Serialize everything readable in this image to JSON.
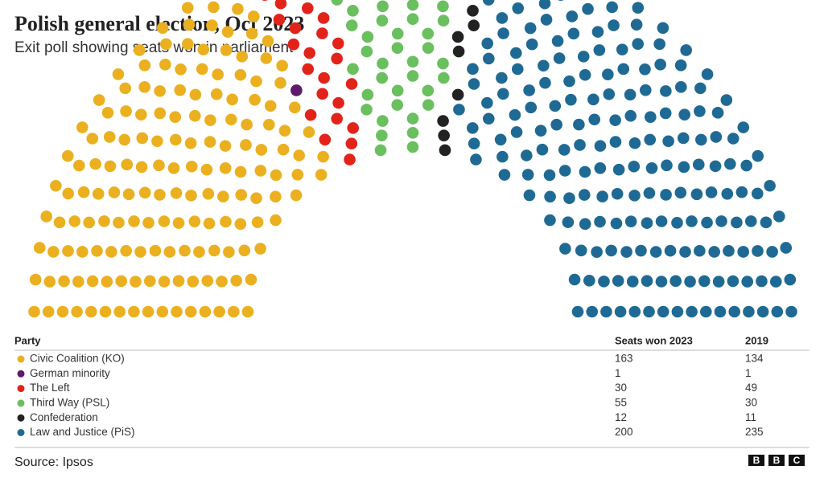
{
  "chart_data": {
    "type": "parliament",
    "title": "Polish general election, Oct 2023",
    "subtitle": "Exit poll showing seats won in parliament",
    "columns": [
      "Party",
      "Seats won 2023",
      "2019"
    ],
    "categories": [
      "Civic Coalition (KO)",
      "German minority",
      "The Left",
      "Third Way (PSL)",
      "Confederation",
      "Law and Justice (PiS)"
    ],
    "colors": [
      "#ebb020",
      "#5c1a6b",
      "#e2231a",
      "#6abf5e",
      "#222222",
      "#1f6a94"
    ],
    "values": [
      163,
      1,
      30,
      55,
      12,
      200
    ],
    "values_2019": [
      134,
      1,
      49,
      30,
      11,
      235
    ]
  },
  "source": "Source: Ipsos",
  "logo": [
    "B",
    "B",
    "C"
  ]
}
